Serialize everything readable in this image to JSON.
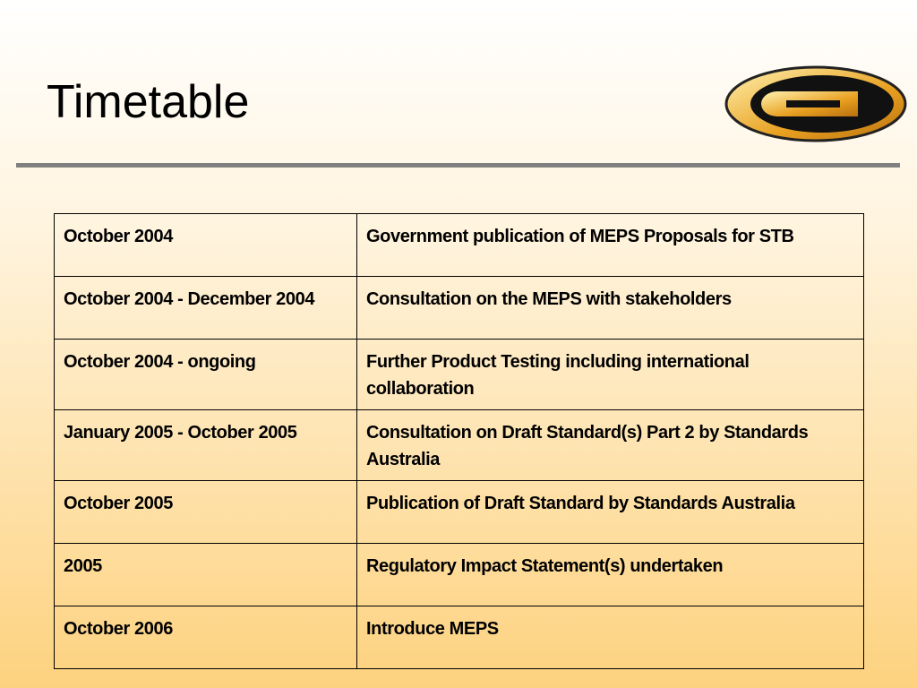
{
  "header": {
    "title": "Timetable"
  },
  "table": {
    "rows": [
      [
        "October 2004",
        "Government publication of MEPS Proposals for STB"
      ],
      [
        "October 2004 - December 2004",
        "Consultation on the MEPS with stakeholders"
      ],
      [
        "October 2004 - ongoing",
        "Further Product Testing including international collaboration"
      ],
      [
        "January 2005 - October 2005",
        "Consultation on Draft Standard(s) Part 2 by Standards Australia"
      ],
      [
        "October 2005",
        "Publication of Draft Standard by Standards Australia"
      ],
      [
        "2005",
        "Regulatory Impact Statement(s) undertaken"
      ],
      [
        "October 2006",
        "Introduce MEPS"
      ]
    ]
  }
}
